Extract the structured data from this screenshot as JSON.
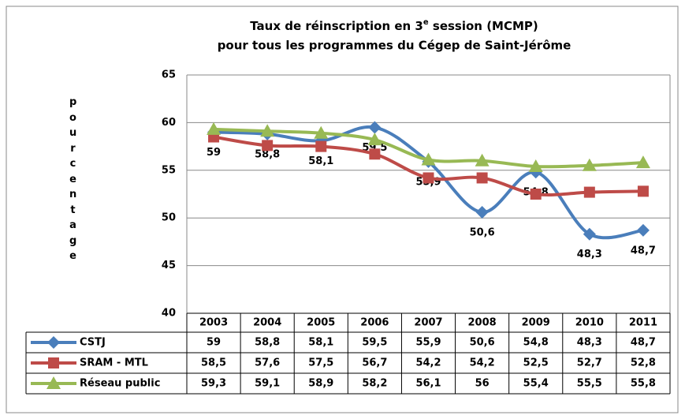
{
  "chart_data": {
    "type": "line",
    "title_parts": [
      "Taux de réinscription en 3",
      "e",
      " session (MCMP)"
    ],
    "subtitle": "pour tous les programmes du Cégep de Saint-Jérôme",
    "ylabel": "pourcentage",
    "categories": [
      "2003",
      "2004",
      "2005",
      "2006",
      "2007",
      "2008",
      "2009",
      "2010",
      "2011"
    ],
    "series": [
      {
        "name": "CSTJ",
        "color": "#4a7ebb",
        "marker": "diamond",
        "data_labels": true,
        "values": [
          59,
          58.8,
          58.1,
          59.5,
          55.9,
          50.6,
          54.8,
          48.3,
          48.7
        ],
        "value_labels": [
          "59",
          "58,8",
          "58,1",
          "59,5",
          "55,9",
          "50,6",
          "54,8",
          "48,3",
          "48,7"
        ]
      },
      {
        "name": "SRAM - MTL",
        "color": "#be4b48",
        "marker": "square",
        "data_labels": false,
        "values": [
          58.5,
          57.6,
          57.5,
          56.7,
          54.2,
          54.2,
          52.5,
          52.7,
          52.8
        ],
        "value_labels": [
          "58,5",
          "57,6",
          "57,5",
          "56,7",
          "54,2",
          "54,2",
          "52,5",
          "52,7",
          "52,8"
        ]
      },
      {
        "name": "Réseau public",
        "color": "#98b954",
        "marker": "triangle",
        "data_labels": false,
        "values": [
          59.3,
          59.1,
          58.9,
          58.2,
          56.1,
          56,
          55.4,
          55.5,
          55.8
        ],
        "value_labels": [
          "59,3",
          "59,1",
          "58,9",
          "58,2",
          "56,1",
          "56",
          "55,4",
          "55,5",
          "55,8"
        ]
      }
    ],
    "ylim": [
      40,
      65
    ],
    "yticks": [
      40,
      45,
      50,
      55,
      60,
      65
    ],
    "grid": true
  }
}
